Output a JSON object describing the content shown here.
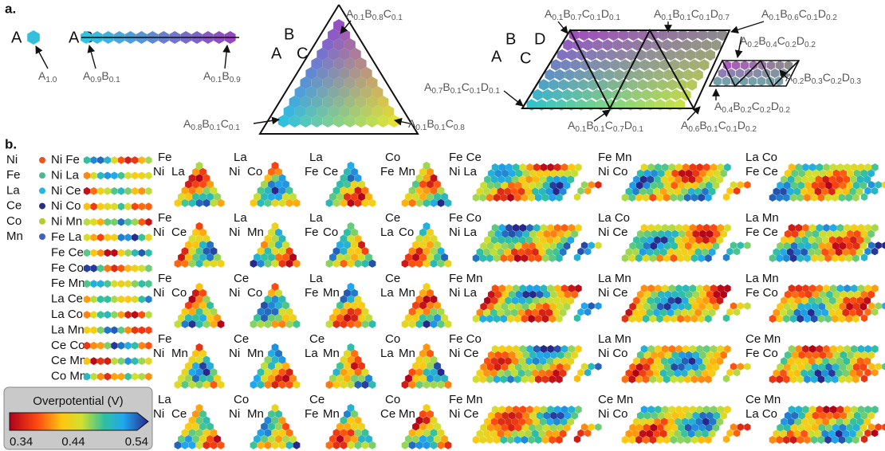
{
  "panel_a": {
    "label": "a.",
    "unary": {
      "heading": "A",
      "point": "A1.0"
    },
    "binary": {
      "heading": "A B",
      "start": "A0.9B0.1",
      "end": "A0.1B0.9"
    },
    "ternary": {
      "heading": [
        "A",
        "B",
        "C"
      ],
      "labels": [
        "A0.1B0.8C0.1",
        "A0.8B0.1C0.1",
        "A0.1B0.1C0.8"
      ]
    },
    "quaternary": {
      "heading": [
        "A",
        "B",
        "C",
        "D"
      ],
      "labels": [
        "A0.1B0.7C0.1D0.1",
        "A0.1B0.1C0.1D0.7",
        "A0.1B0.6C0.1D0.2",
        "A0.2B0.4C0.2D0.2",
        "A0.7B0.1C0.1D0.1",
        "A0.2B0.3C0.2D0.3",
        "A0.4B0.2C0.2D0.2",
        "A0.1B0.1C0.7D0.1",
        "A0.6B0.1C0.1D0.2"
      ]
    }
  },
  "panel_b": {
    "label": "b.",
    "elements": [
      {
        "name": "Ni",
        "color": "#e8561e"
      },
      {
        "name": "Fe",
        "color": "#4cb88c"
      },
      {
        "name": "La",
        "color": "#28b4e4"
      },
      {
        "name": "Ce",
        "color": "#26307e"
      },
      {
        "name": "Co",
        "color": "#b4cc30"
      },
      {
        "name": "Mn",
        "color": "#4460bc"
      }
    ],
    "binaries": [
      "Ni Fe",
      "Ni La",
      "Ni Ce",
      "Ni Co",
      "Ni Mn",
      "Fe La",
      "Fe Ce",
      "Fe Co",
      "Fe Mn",
      "La Ce",
      "La Co",
      "La Mn",
      "Ce Co",
      "Ce Mn",
      "Co Mn"
    ],
    "colorbar": {
      "title": "Overpotential (V)",
      "ticks": [
        0.34,
        0.44,
        0.54
      ]
    },
    "ternaries": [
      [
        {
          "top": "Fe",
          "left": "Ni",
          "right": "La"
        },
        {
          "top": "La",
          "left": "Ni",
          "right": "Co"
        },
        {
          "top": "La",
          "left": "Fe",
          "right": "Ce"
        },
        {
          "top": "Co",
          "left": "Fe",
          "right": "Mn"
        }
      ],
      [
        {
          "top": "Fe",
          "left": "Ni",
          "right": "Ce"
        },
        {
          "top": "La",
          "left": "Ni",
          "right": "Mn"
        },
        {
          "top": "La",
          "left": "Fe",
          "right": "Co"
        },
        {
          "top": "Ce",
          "left": "La",
          "right": "Co"
        }
      ],
      [
        {
          "top": "Fe",
          "left": "Ni",
          "right": "Co"
        },
        {
          "top": "Ce",
          "left": "Ni",
          "right": "Co"
        },
        {
          "top": "La",
          "left": "Fe",
          "right": "Mn"
        },
        {
          "top": "Ce",
          "left": "La",
          "right": "Mn"
        }
      ],
      [
        {
          "top": "Fe",
          "left": "Ni",
          "right": "Mn"
        },
        {
          "top": "Ce",
          "left": "Ni",
          "right": "Mn"
        },
        {
          "top": "Ce",
          "left": "La",
          "right": "Mn"
        },
        {
          "top": "Co",
          "left": "La",
          "right": "Mn"
        }
      ],
      [
        {
          "top": "La",
          "left": "Ni",
          "right": "Ce"
        },
        {
          "top": "Co",
          "left": "Ni",
          "right": "Mn"
        },
        {
          "top": "Ce",
          "left": "Fe",
          "right": "Mn"
        },
        {
          "top": "Co",
          "left": "Ce",
          "right": "Mn"
        }
      ]
    ],
    "quaternaries": [
      [
        {
          "top": "Fe Ce",
          "bottom": "Ni La"
        },
        {
          "top": "Fe Mn",
          "bottom": "Ni Co"
        },
        {
          "top": "La Co",
          "bottom": "Fe Ce"
        }
      ],
      [
        {
          "top": "Fe Co",
          "bottom": "Ni La"
        },
        {
          "top": "La Co",
          "bottom": "Ni Ce"
        },
        {
          "top": "La Mn",
          "bottom": "Fe Ce"
        }
      ],
      [
        {
          "top": "Fe Mn",
          "bottom": "Ni La"
        },
        {
          "top": "La Mn",
          "bottom": "Ni Ce"
        },
        {
          "top": "La Mn",
          "bottom": "Fe Co"
        }
      ],
      [
        {
          "top": "Fe Co",
          "bottom": "Ni Ce"
        },
        {
          "top": "La Mn",
          "bottom": "Ni Co"
        },
        {
          "top": "Ce Mn",
          "bottom": "Fe Co"
        }
      ],
      [
        {
          "top": "Fe Mn",
          "bottom": "Ni Ce"
        },
        {
          "top": "Ce Mn",
          "bottom": "Ni Co"
        },
        {
          "top": "Ce Mn",
          "bottom": "La Co"
        }
      ]
    ]
  }
}
